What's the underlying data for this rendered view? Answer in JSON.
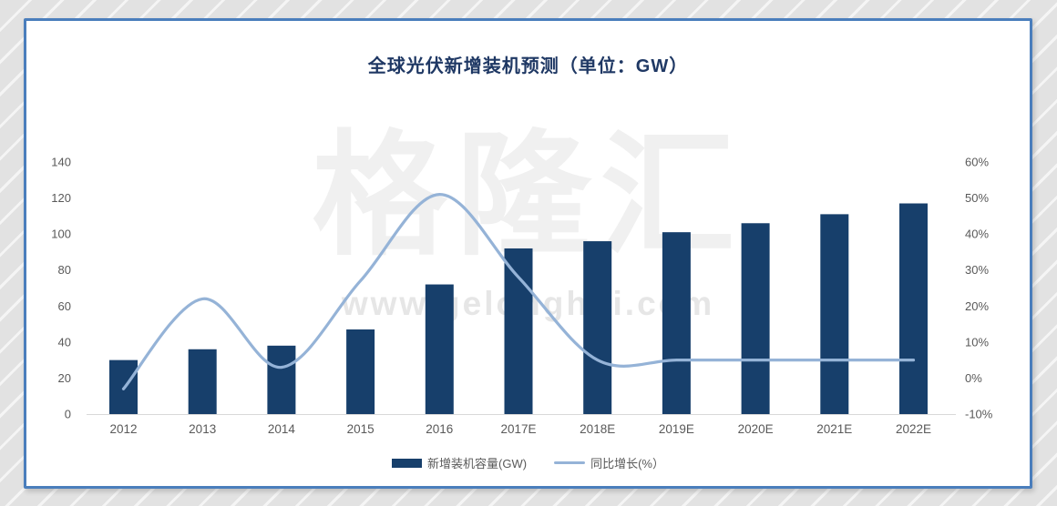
{
  "frame": {
    "page_bg": "#e2e2e2",
    "card_bg": "#ffffff",
    "border_color": "#4a7ebc"
  },
  "title": "全球光伏新增装机预测（单位：GW）",
  "watermark": {
    "text": "格隆汇",
    "url": "www.gelonghui.com"
  },
  "legend": {
    "items": [
      {
        "label": "新增装机容量(GW)",
        "type": "bar",
        "color": "#173f6b"
      },
      {
        "label": "同比增长(%）",
        "type": "line",
        "color": "#95b3d7"
      }
    ]
  },
  "chart_data": {
    "type": "bar",
    "subtype": "bar+line-combo",
    "title": "全球光伏新增装机预测（单位：GW）",
    "categories": [
      "2012",
      "2013",
      "2014",
      "2015",
      "2016",
      "2017E",
      "2018E",
      "2019E",
      "2020E",
      "2021E",
      "2022E"
    ],
    "series": [
      {
        "name": "新增装机容量(GW)",
        "type": "bar",
        "axis": "left",
        "color": "#173f6b",
        "values": [
          30,
          36,
          38,
          47,
          72,
          92,
          96,
          101,
          106,
          111,
          117
        ]
      },
      {
        "name": "同比增长(%）",
        "type": "line",
        "axis": "right",
        "color": "#95b3d7",
        "values": [
          -3,
          22,
          3,
          27,
          51,
          28,
          5,
          5,
          5,
          5,
          5
        ]
      }
    ],
    "left_axis": {
      "min": 0,
      "max": 140,
      "step": 20,
      "ticks": [
        "0",
        "20",
        "40",
        "60",
        "80",
        "100",
        "120",
        "140"
      ]
    },
    "right_axis": {
      "min": -10,
      "max": 60,
      "step": 10,
      "unit": "%",
      "ticks": [
        "-10%",
        "0%",
        "10%",
        "20%",
        "30%",
        "40%",
        "50%",
        "60%"
      ]
    },
    "grid": false,
    "legend_position": "bottom",
    "tick_color": "#595959",
    "axisline_color": "#d9d9d9"
  }
}
